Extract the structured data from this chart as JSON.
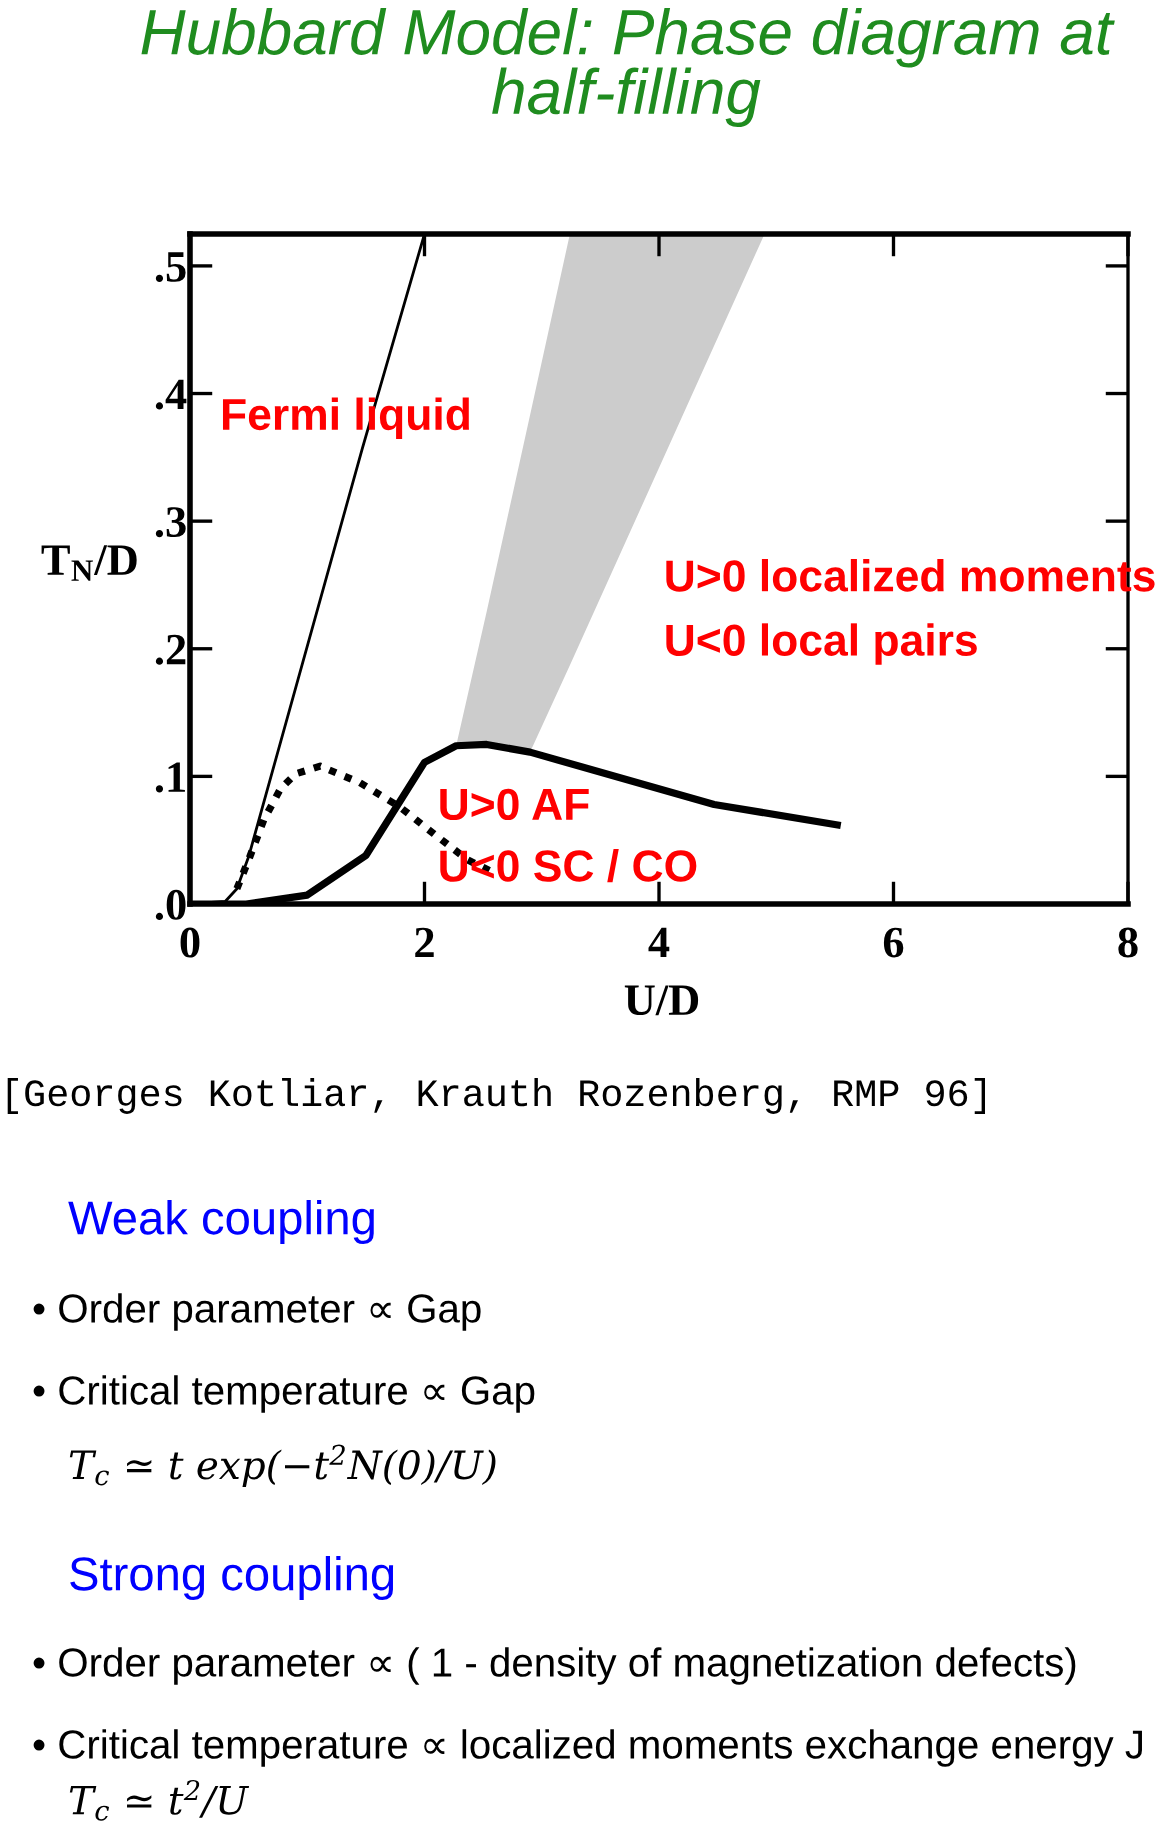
{
  "chart_data": {
    "type": "line",
    "title": "Hubbard Model: Phase diagram at half-filling",
    "xlabel": "U/D",
    "ylabel": "T$_{N}$/D",
    "xlim": [
      0,
      8
    ],
    "xticks": [
      0,
      2,
      4,
      6,
      8
    ],
    "ylim": [
      0,
      0.525
    ],
    "yticks": [
      {
        "value": 0,
        "label": ".0"
      },
      {
        "value": 0.1,
        "label": ".1"
      },
      {
        "value": 0.2,
        "label": ".2"
      },
      {
        "value": 0.3,
        "label": ".3"
      },
      {
        "value": 0.4,
        "label": ".4"
      },
      {
        "value": 0.5,
        "label": ".5"
      }
    ],
    "series": [
      {
        "type": "area",
        "color": "#cccccc",
        "x": [
          2.27,
          2.53,
          2.9,
          3.24,
          4.9
        ],
        "values": [
          null,
          null,
          null,
          null,
          null
        ],
        "lower": [
          0.124,
          0.125,
          0.119,
          0.187,
          0.525
        ],
        "upper": [
          0.124,
          0.229,
          0.383,
          0.525,
          0.525
        ]
      },
      {
        "color": "#000000",
        "line_style": "solid",
        "x": [
          0,
          0.3,
          0.4,
          0.5,
          1.47,
          2.0
        ],
        "values": [
          0,
          0.002,
          0.012,
          0.037,
          0.357,
          0.525
        ]
      },
      {
        "color": "#000000",
        "line_style": "dotted",
        "x": [
          0.4,
          0.51,
          0.63,
          0.77,
          0.9,
          1.11,
          1.45,
          1.79,
          2.08,
          2.36,
          2.6
        ],
        "values": [
          0.012,
          0.037,
          0.066,
          0.09,
          0.102,
          0.108,
          0.095,
          0.076,
          0.055,
          0.035,
          0.024
        ]
      },
      {
        "color": "#000000",
        "line_style": "solid",
        "x": [
          0,
          0.48,
          1.0,
          1.5,
          2.0,
          2.27,
          2.53,
          2.9,
          4.47,
          5.52
        ],
        "values": [
          0,
          0,
          0.007,
          0.038,
          0.111,
          0.124,
          0.125,
          0.119,
          0.078,
          0.062
        ]
      }
    ],
    "annotations": [
      "Fermi liquid",
      "U>0 localized moments",
      "U<0 local pairs",
      "U>0 AF",
      "U<0 SC / CO",
      "[Georges Kotliar, Krauth Rozenberg, RMP 96]",
      "Weak coupling",
      "• Order parameter ∝ Gap",
      "• Critical temperature ∝ Gap",
      "T$_{c}$ ≃ t exp(−t$^{2}$N(0)/U)",
      "Strong coupling",
      "• Order parameter ∝ ( 1 - density of magnetization defects)",
      "• Critical temperature ∝ localized moments exchange energy J",
      "T$_{c}$ ≃ t$^{2}$/U"
    ]
  }
}
